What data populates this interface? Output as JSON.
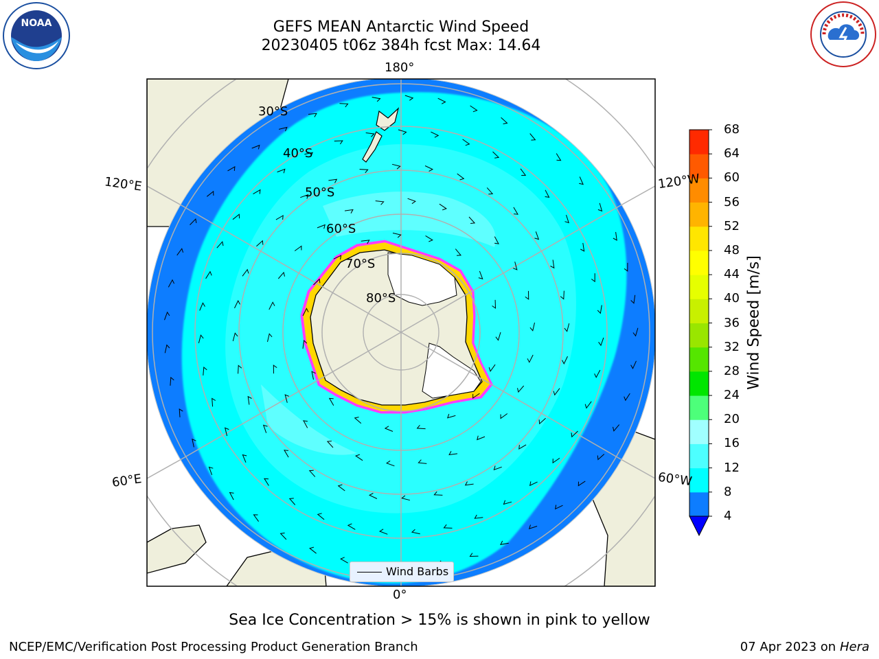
{
  "header": {
    "title_line1": "GEFS MEAN Antarctic Wind Speed",
    "title_line2": "20230405 t06z 384h fcst   Max: 14.64"
  },
  "map": {
    "projection": "south-polar-stereographic",
    "longitude_labels": {
      "top": "180°",
      "bottom": "0°",
      "upper_left": "120°E",
      "lower_left": "60°E",
      "upper_right": "120°W",
      "lower_right": "60°W"
    },
    "latitude_labels": [
      "30°S",
      "40°S",
      "50°S",
      "60°S",
      "70°S",
      "80°S"
    ],
    "legend_label": "Wind Barbs",
    "ocean_colors": {
      "low": "#0d7dff",
      "mid": "#00ffff",
      "high": "#4dffff"
    },
    "land_color": "#efefdc",
    "ice_color": "#ffffff",
    "sea_ice_colors": [
      "#ff3cff",
      "#ff8cff",
      "#ffd700"
    ]
  },
  "colorbar": {
    "label": "Wind Speed [m/s]",
    "ticks": [
      "4",
      "8",
      "12",
      "16",
      "20",
      "24",
      "28",
      "32",
      "36",
      "40",
      "44",
      "48",
      "52",
      "56",
      "60",
      "64",
      "68"
    ],
    "colors": [
      "#0d7dff",
      "#00ffff",
      "#4dffff",
      "#a0ffff",
      "#4dff7a",
      "#00e600",
      "#55e600",
      "#99e600",
      "#c8f000",
      "#e6ff00",
      "#ffff00",
      "#ffe600",
      "#ffb400",
      "#ff8c00",
      "#ff5a00",
      "#ff2a00"
    ],
    "extend_color": "#0000ff"
  },
  "footer": {
    "caption": "Sea Ice Concentration > 15% is shown in pink to yellow",
    "left_text": "NCEP/EMC/Verification Post Processing Product Generation Branch",
    "date_text": "07 Apr 2023 on ",
    "host_text": "Hera"
  },
  "logos": {
    "left": "NOAA",
    "right": "NATIONAL WEATHER SERVICE"
  }
}
